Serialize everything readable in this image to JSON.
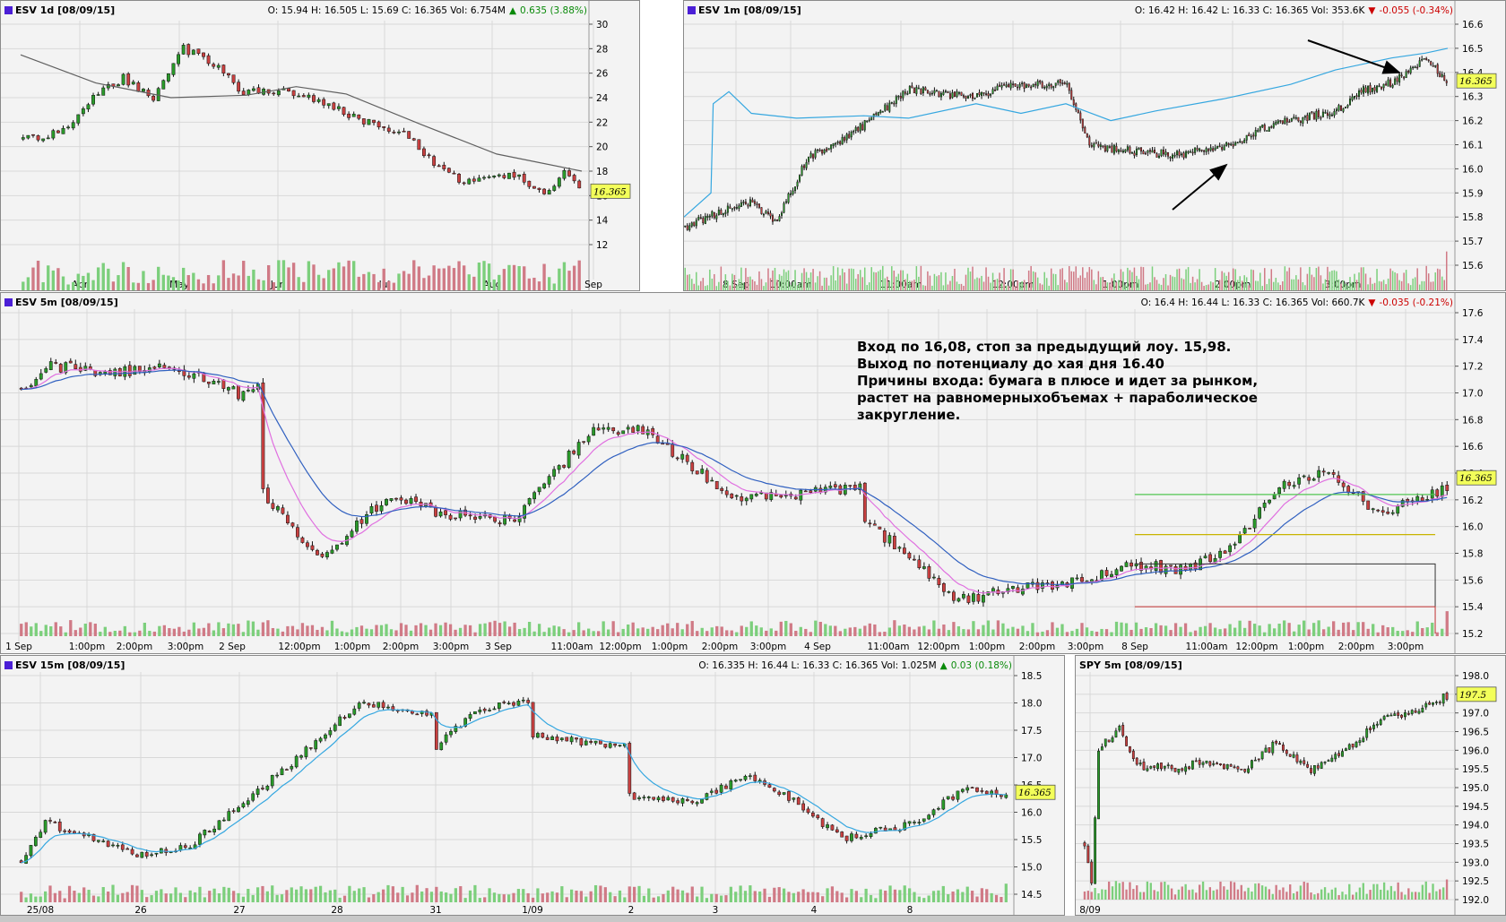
{
  "panels": {
    "daily": {
      "title": "ESV 1d [08/09/15]",
      "ohlc": "O: 15.94  H: 16.505  L: 15.69  C: 16.365  Vol: 6.754M",
      "change": "0.635 (3.88%)",
      "change_dir": "up",
      "price_tag": "16.365"
    },
    "one_min": {
      "title": "ESV 1m [08/09/15]",
      "ohlc": "O: 16.42  H: 16.42  L: 16.33  C: 16.365  Vol: 353.6K",
      "change": "-0.055 (-0.34%)",
      "change_dir": "down",
      "price_tag": "16.365"
    },
    "five_min": {
      "title": "ESV 5m [08/09/15]",
      "ohlc": "O: 16.4  H: 16.44  L: 16.33  C: 16.365  Vol: 660.7K",
      "change": "-0.035 (-0.21%)",
      "change_dir": "down",
      "price_tag": "16.365",
      "note": "Вход по 16,08, стоп за предыдущий лоу. 15,98.\nВыход по потенциалу до хая дня 16.40\nПричины входа: бумага в плюсе и идет за рынком,\nрастет на равномерныхобъемах + параболическое\nзакругление."
    },
    "fifteen_min": {
      "title": "ESV 15m [08/09/15]",
      "ohlc": "O: 16.335  H: 16.44  L: 16.33  C: 16.365  Vol: 1.025M",
      "change": "0.03 (0.18%)",
      "change_dir": "up",
      "price_tag": "16.365"
    },
    "spy": {
      "title": "SPY 5m [08/09/15]",
      "price_tag": "197.5"
    }
  },
  "colors": {
    "up_candle": "#2a9a2a",
    "down_candle": "#c84040",
    "vol_up": "#7ccf7c",
    "vol_down": "#d07a86",
    "ma_grey": "#606060",
    "ma_blue": "#3060c0",
    "ma_pink": "#e070e0",
    "spy_line": "#35a7e0",
    "tag_bg": "#f3ff5a",
    "grid": "#d8d8d8"
  },
  "chart_data": [
    {
      "id": "daily",
      "type": "candlestick",
      "x_ticks": [
        "Apr",
        "May",
        "Jun",
        "Jul",
        "Aug",
        "Sep"
      ],
      "y_ticks": [
        "30",
        "28",
        "26",
        "24",
        "22",
        "20",
        "18",
        "16",
        "14",
        "12"
      ],
      "ylim": [
        12,
        30
      ],
      "anchors": [
        [
          0,
          20.6
        ],
        [
          8,
          21.2
        ],
        [
          14,
          24.0
        ],
        [
          20,
          25.6
        ],
        [
          26,
          24.0
        ],
        [
          32,
          28.0
        ],
        [
          38,
          26.8
        ],
        [
          44,
          24.4
        ],
        [
          50,
          24.6
        ],
        [
          56,
          24.3
        ],
        [
          62,
          23.2
        ],
        [
          70,
          21.8
        ],
        [
          76,
          21.2
        ],
        [
          82,
          18.6
        ],
        [
          88,
          17.0
        ],
        [
          94,
          17.3
        ],
        [
          98,
          17.8
        ],
        [
          104,
          16.0
        ],
        [
          108,
          17.9
        ],
        [
          112,
          16.2
        ]
      ],
      "count": 112,
      "ma": [
        [
          0,
          27.5
        ],
        [
          15,
          25.2
        ],
        [
          30,
          24.0
        ],
        [
          45,
          24.2
        ],
        [
          55,
          24.9
        ],
        [
          65,
          24.3
        ],
        [
          80,
          21.8
        ],
        [
          95,
          19.4
        ],
        [
          112,
          18.0
        ]
      ]
    },
    {
      "id": "one_min",
      "type": "candlestick",
      "x_ticks": [
        "8 Sep",
        "10:00am",
        "11:00am",
        "12:00pm",
        "1:00pm",
        "2:00pm",
        "3:00pm"
      ],
      "y_ticks": [
        "16.6",
        "16.5",
        "16.4",
        "16.3",
        "16.2",
        "16.1",
        "16.0",
        "15.9",
        "15.8",
        "15.7",
        "15.6"
      ],
      "ylim": [
        15.6,
        16.6
      ],
      "anchors": [
        [
          0,
          15.76
        ],
        [
          15,
          15.82
        ],
        [
          30,
          15.86
        ],
        [
          40,
          15.78
        ],
        [
          55,
          16.05
        ],
        [
          75,
          16.15
        ],
        [
          100,
          16.33
        ],
        [
          125,
          16.3
        ],
        [
          150,
          16.35
        ],
        [
          170,
          16.35
        ],
        [
          180,
          16.1
        ],
        [
          200,
          16.07
        ],
        [
          220,
          16.06
        ],
        [
          240,
          16.09
        ],
        [
          260,
          16.18
        ],
        [
          290,
          16.24
        ],
        [
          300,
          16.32
        ],
        [
          315,
          16.36
        ],
        [
          330,
          16.45
        ],
        [
          340,
          16.36
        ]
      ],
      "count": 340,
      "spy": [
        [
          0,
          15.8
        ],
        [
          12,
          15.9
        ],
        [
          13,
          16.27
        ],
        [
          20,
          16.32
        ],
        [
          30,
          16.23
        ],
        [
          50,
          16.21
        ],
        [
          80,
          16.22
        ],
        [
          100,
          16.21
        ],
        [
          130,
          16.27
        ],
        [
          150,
          16.23
        ],
        [
          170,
          16.27
        ],
        [
          190,
          16.2
        ],
        [
          210,
          16.24
        ],
        [
          240,
          16.29
        ],
        [
          270,
          16.35
        ],
        [
          290,
          16.41
        ],
        [
          315,
          16.46
        ],
        [
          330,
          16.48
        ],
        [
          340,
          16.5
        ]
      ],
      "annotations": [
        "arrow-up-left",
        "arrow-down-right"
      ]
    },
    {
      "id": "five_min",
      "type": "candlestick",
      "x_ticks": [
        "1 Sep",
        "1:00pm",
        "2:00pm",
        "3:00pm",
        "2 Sep",
        "12:00pm",
        "1:00pm",
        "2:00pm",
        "3:00pm",
        "3 Sep",
        "11:00am",
        "12:00pm",
        "1:00pm",
        "2:00pm",
        "3:00pm",
        "4 Sep",
        "11:00am",
        "12:00pm",
        "1:00pm",
        "2:00pm",
        "3:00pm",
        "8 Sep",
        "11:00am",
        "12:00pm",
        "1:00pm",
        "2:00pm",
        "3:00pm"
      ],
      "y_ticks": [
        "17.6",
        "17.4",
        "17.2",
        "17.0",
        "16.8",
        "16.6",
        "16.4",
        "16.2",
        "16.0",
        "15.8",
        "15.6",
        "15.4",
        "15.2"
      ],
      "ylim": [
        15.2,
        17.6
      ],
      "anchors": [
        [
          0,
          17.03
        ],
        [
          5,
          17.2
        ],
        [
          20,
          17.15
        ],
        [
          30,
          17.2
        ],
        [
          45,
          16.98
        ],
        [
          48,
          17.08
        ],
        [
          49,
          16.25
        ],
        [
          60,
          15.75
        ],
        [
          75,
          16.25
        ],
        [
          85,
          16.1
        ],
        [
          100,
          16.05
        ],
        [
          115,
          16.7
        ],
        [
          125,
          16.75
        ],
        [
          145,
          16.2
        ],
        [
          160,
          16.25
        ],
        [
          170,
          16.3
        ],
        [
          171,
          16.05
        ],
        [
          190,
          15.45
        ],
        [
          205,
          15.55
        ],
        [
          215,
          15.6
        ],
        [
          225,
          15.72
        ],
        [
          235,
          15.68
        ],
        [
          245,
          15.82
        ],
        [
          255,
          16.3
        ],
        [
          265,
          16.42
        ],
        [
          275,
          16.1
        ],
        [
          290,
          16.3
        ]
      ],
      "count": 290,
      "lines": [
        {
          "name": "",
          "y": 16.24,
          "color": "#52c652",
          "from": 0.78,
          "to": 0.99
        },
        {
          "name": "",
          "y": 15.94,
          "color": "#c8b400",
          "from": 0.78,
          "to": 0.99
        }
      ],
      "box": {
        "top": 15.72,
        "bottom": 15.4,
        "from": 0.78,
        "to": 0.99
      }
    },
    {
      "id": "fifteen_min",
      "type": "candlestick",
      "x_ticks": [
        "25/08",
        "26",
        "27",
        "28",
        "31",
        "1/09",
        "2",
        "3",
        "4",
        "8"
      ],
      "y_ticks": [
        "18.5",
        "18.0",
        "17.5",
        "17.0",
        "16.5",
        "16.0",
        "15.5",
        "15.0",
        "14.5"
      ],
      "ylim": [
        14.5,
        18.5
      ],
      "anchors": [
        [
          0,
          15.1
        ],
        [
          5,
          15.8
        ],
        [
          15,
          15.5
        ],
        [
          25,
          15.2
        ],
        [
          35,
          15.4
        ],
        [
          45,
          16.1
        ],
        [
          60,
          17.2
        ],
        [
          70,
          18.0
        ],
        [
          85,
          17.8
        ],
        [
          86,
          17.2
        ],
        [
          95,
          17.9
        ],
        [
          105,
          18.0
        ],
        [
          106,
          17.4
        ],
        [
          125,
          17.2
        ],
        [
          126,
          16.3
        ],
        [
          140,
          16.2
        ],
        [
          150,
          16.7
        ],
        [
          160,
          16.2
        ],
        [
          170,
          15.5
        ],
        [
          185,
          15.8
        ],
        [
          195,
          16.4
        ],
        [
          205,
          16.3
        ]
      ],
      "count": 205
    },
    {
      "id": "spy",
      "type": "candlestick",
      "x_ticks": [
        "8/09"
      ],
      "y_ticks": [
        "198.0",
        "197.5",
        "197.0",
        "196.5",
        "196.0",
        "195.5",
        "195.0",
        "194.5",
        "194.0",
        "193.5",
        "193.0",
        "192.5",
        "192.0"
      ],
      "ylim": [
        192.0,
        198.0
      ],
      "anchors": [
        [
          0,
          193.5
        ],
        [
          2,
          192.5
        ],
        [
          4,
          196.0
        ],
        [
          10,
          196.6
        ],
        [
          15,
          195.6
        ],
        [
          25,
          195.5
        ],
        [
          35,
          195.7
        ],
        [
          45,
          195.4
        ],
        [
          55,
          196.2
        ],
        [
          65,
          195.5
        ],
        [
          75,
          196.0
        ],
        [
          85,
          196.8
        ],
        [
          95,
          197.1
        ],
        [
          105,
          197.5
        ]
      ],
      "count": 105
    }
  ]
}
